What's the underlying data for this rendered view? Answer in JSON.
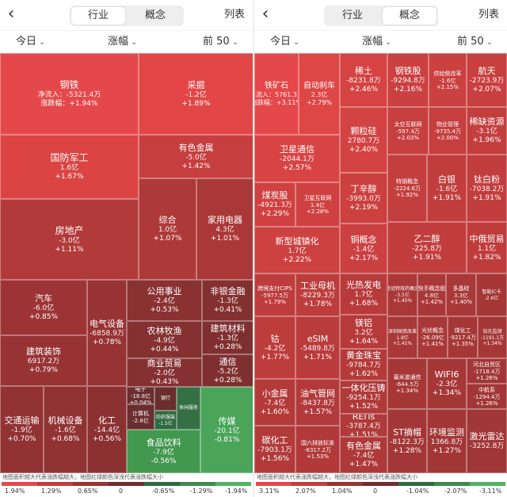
{
  "colors": {
    "red_dark": "#7e2e2f",
    "red_mid": "#9a3333",
    "red_strong": "#c13d3c",
    "red_bright": "#e5484a",
    "green": "#4aa55b",
    "green_dark": "#2f6a40"
  },
  "left": {
    "nav": {
      "back_icon": "chevron-left-icon",
      "tabs": [
        "行业",
        "概念"
      ],
      "active_tab": 0,
      "list_label": "列表"
    },
    "filters": {
      "period": "今日",
      "metric": "涨幅",
      "top": "前 50"
    },
    "tiles": [
      {
        "name": "钢铁",
        "lines": [
          "净流入：-5321.4万",
          "涨跌幅：+1.94%"
        ],
        "color": "#e5484a"
      },
      {
        "name": "采掘",
        "lines": [
          "-1.2亿",
          "+1.89%"
        ],
        "color": "#e24647"
      },
      {
        "name": "国防军工",
        "lines": [
          "1.6亿",
          "+1.67%"
        ],
        "color": "#db4443"
      },
      {
        "name": "有色金属",
        "lines": [
          "-5.0亿",
          "+1.42%"
        ],
        "color": "#c63e3e"
      },
      {
        "name": "房地产",
        "lines": [
          "-3.0亿",
          "+1.11%"
        ],
        "color": "#b23a3a"
      },
      {
        "name": "综合",
        "lines": [
          "1.0亿",
          "+1.07%"
        ],
        "color": "#ae3939"
      },
      {
        "name": "家用电器",
        "lines": [
          "4.3亿",
          "+1.01%"
        ],
        "color": "#aa3838"
      },
      {
        "name": "汽车",
        "lines": [
          "-6.0亿",
          "+0.85%"
        ],
        "color": "#9c3435"
      },
      {
        "name": "建筑装饰",
        "lines": [
          "6917.2万",
          "+0.79%"
        ],
        "color": "#983334"
      },
      {
        "name": "电气设备",
        "lines": [
          "-6858.9万",
          "+0.78%"
        ],
        "color": "#973334"
      },
      {
        "name": "公用事业",
        "lines": [
          "-2.4亿",
          "+0.53%"
        ],
        "color": "#8a3132"
      },
      {
        "name": "非银金融",
        "lines": [
          "-1.3亿",
          "+0.41%"
        ],
        "color": "#843031"
      },
      {
        "name": "农林牧渔",
        "lines": [
          "-4.9亿",
          "+0.44%"
        ],
        "color": "#853031"
      },
      {
        "name": "建筑材料",
        "lines": [
          "-1.3亿",
          "+0.28%"
        ],
        "color": "#7f2f30"
      },
      {
        "name": "商业贸易",
        "lines": [
          "-2.0亿",
          "+0.43%"
        ],
        "color": "#853031"
      },
      {
        "name": "通信",
        "lines": [
          "-5.2亿",
          "+0.28%"
        ],
        "color": "#7f2f30"
      },
      {
        "name": "交通运输",
        "lines": [
          "-1.9亿",
          "+0.70%"
        ],
        "color": "#923233"
      },
      {
        "name": "机械设备",
        "lines": [
          "-1.6亿",
          "+0.68%"
        ],
        "color": "#913233"
      },
      {
        "name": "化工",
        "lines": [
          "-14.4亿",
          "+0.56%"
        ],
        "color": "#8b3132"
      },
      {
        "name": "电子",
        "lines": [
          "-18.8亿",
          "+0.04%"
        ],
        "color": "#6a2e2f"
      },
      {
        "name": "计算机",
        "lines": [
          "-2.8亿"
        ],
        "color": "#6a2e2f"
      },
      {
        "name": "银行",
        "lines": [],
        "color": "#6a2e2f"
      },
      {
        "name": "纺织服装",
        "lines": [
          "-1.5亿"
        ],
        "color": "#2f6a40"
      },
      {
        "name": "休闲服务",
        "lines": [],
        "color": "#347044"
      },
      {
        "name": "传媒",
        "lines": [
          "-20.1亿",
          "-0.81%"
        ],
        "color": "#4aa55b"
      },
      {
        "name": "食品饮料",
        "lines": [
          "-7.9亿",
          "-0.56%"
        ],
        "color": "#43984f"
      }
    ],
    "legend": {
      "note": "地图面积越大代表涨跌幅越大，地图红绿颜色深浅代表涨跌幅大小",
      "labels": [
        "1.94%",
        "1.29%",
        "0.65%",
        "0",
        "-0.65%",
        "-1.29%",
        "-1.94%"
      ]
    }
  },
  "right": {
    "nav": {
      "back_icon": "chevron-left-icon",
      "tabs": [
        "行业",
        "概念"
      ],
      "active_tab": 1,
      "list_label": "列表"
    },
    "filters": {
      "period": "今日",
      "metric": "涨幅",
      "top": "前 50"
    },
    "tiles": [
      {
        "name": "铁矿石",
        "lines": [
          "净流入：5761.3万",
          "涨跌幅：+3.11%"
        ],
        "color": "#e5484a"
      },
      {
        "name": "自动刹车",
        "lines": [
          "2.3亿",
          "+2.79%"
        ],
        "color": "#df4646"
      },
      {
        "name": "卫星通信",
        "lines": [
          "-2044.1万",
          "+2.57%"
        ],
        "color": "#d84444"
      },
      {
        "name": "稀土",
        "lines": [
          "-8231.8万",
          "+2.46%"
        ],
        "color": "#d54343"
      },
      {
        "name": "钢铁股",
        "lines": [
          "-9294.8万",
          "+2.16%"
        ],
        "color": "#cb4040"
      },
      {
        "name": "供给侧改革",
        "lines": [
          "-1.6亿",
          "+2.15%"
        ],
        "color": "#cb4040"
      },
      {
        "name": "航天",
        "lines": [
          "-2723.9万",
          "+2.07%"
        ],
        "color": "#c83f3f"
      },
      {
        "name": "颗粒硅",
        "lines": [
          "2780.7万",
          "+2.40%"
        ],
        "color": "#d34343"
      },
      {
        "name": "太空互联网",
        "lines": [
          "-597.4万",
          "+2.03%"
        ],
        "color": "#c73f3f"
      },
      {
        "name": "物业管理",
        "lines": [
          "-9735.4万",
          "+2.00%"
        ],
        "color": "#c63e3e"
      },
      {
        "name": "稀缺资源",
        "lines": [
          "-3.1亿",
          "+1.96%"
        ],
        "color": "#c43e3e"
      },
      {
        "name": "煤炭股",
        "lines": [
          "-4921.3万",
          "+2.29%"
        ],
        "color": "#cf4141"
      },
      {
        "name": "卫星互联网",
        "lines": [
          "1.4亿",
          "+2.28%"
        ],
        "color": "#cf4141"
      },
      {
        "name": "丁辛醇",
        "lines": [
          "-3993.0万",
          "+2.19%"
        ],
        "color": "#cc4040"
      },
      {
        "name": "特钢概念",
        "lines": [
          "-2224.6万",
          "+1.92%"
        ],
        "color": "#c33e3e"
      },
      {
        "name": "白银",
        "lines": [
          "-1.6亿",
          "+1.91%"
        ],
        "color": "#c23d3d"
      },
      {
        "name": "钛白粉",
        "lines": [
          "-7038.2万",
          "+1.91%"
        ],
        "color": "#c23d3d"
      },
      {
        "name": "新型城镇化",
        "lines": [
          "1.7亿",
          "+2.22%"
        ],
        "color": "#cd4141"
      },
      {
        "name": "铜概念",
        "lines": [
          "-1.4亿",
          "+2.17%"
        ],
        "color": "#cb4040"
      },
      {
        "name": "乙二醇",
        "lines": [
          "-225.8万",
          "+1.91%"
        ],
        "color": "#c23d3d"
      },
      {
        "name": "中俄贸易",
        "lines": [
          "1.1亿",
          "+1.82%"
        ],
        "color": "#bf3c3c"
      },
      {
        "name": "跨境支付CIPS",
        "lines": [
          "-5977.5万",
          "+1.79%"
        ],
        "color": "#be3c3c"
      },
      {
        "name": "工业母机",
        "lines": [
          "-8229.3万",
          "+1.78%"
        ],
        "color": "#bd3c3c"
      },
      {
        "name": "光热发电",
        "lines": [
          "1.7亿",
          "+1.68%"
        ],
        "color": "#b83b3b"
      },
      {
        "name": "新冠特效药概念",
        "lines": [
          "-3.5亿",
          "+1.45%"
        ],
        "color": "#ab3838"
      },
      {
        "name": "快手概念股",
        "lines": [
          "4.8亿",
          "+1.42%"
        ],
        "color": "#aa3838"
      },
      {
        "name": "多晶硅",
        "lines": [
          "3.3亿",
          "+1.40%"
        ],
        "color": "#a93838"
      },
      {
        "name": "智能IC卡",
        "lines": [
          "-2.6亿"
        ],
        "color": "#a53737"
      },
      {
        "name": "钴",
        "lines": [
          "-4.2亿",
          "+1.77%"
        ],
        "color": "#bd3c3c"
      },
      {
        "name": "eSIM",
        "lines": [
          "-5489.8万",
          "+1.71%"
        ],
        "color": "#ba3b3b"
      },
      {
        "name": "镁铝",
        "lines": [
          "3.2亿",
          "+1.64%"
        ],
        "color": "#b63a3a"
      },
      {
        "name": "深圳国资改革",
        "lines": [
          "1.8亿",
          "+1.41%"
        ],
        "color": "#a93838"
      },
      {
        "name": "光伏概念",
        "lines": [
          "-26.09亿",
          "+1.41%"
        ],
        "color": "#a93838"
      },
      {
        "name": "煤化工",
        "lines": [
          "-9217.4万",
          "+1.35%"
        ],
        "color": "#a63737"
      },
      {
        "name": "钻孔监测",
        "lines": [
          "-1191.1万",
          "+1.34%"
        ],
        "color": "#a63737"
      },
      {
        "name": "黄金珠宝",
        "lines": [
          "-9784.7万",
          "+1.62%"
        ],
        "color": "#b53a3a"
      },
      {
        "name": "小金属",
        "lines": [
          "-7.4亿",
          "+1.60%"
        ],
        "color": "#b43a3a"
      },
      {
        "name": "油气管网",
        "lines": [
          "-8437.8万",
          "+1.57%"
        ],
        "color": "#b23a3a"
      },
      {
        "name": "一体化压铸",
        "lines": [
          "-9254.1万",
          "+1.52%"
        ],
        "color": "#b03939"
      },
      {
        "name": "毫米波通信",
        "lines": [
          "-644.5万",
          "+1.34%"
        ],
        "color": "#a63737"
      },
      {
        "name": "WIFI6",
        "lines": [
          "-2.3亿",
          "+1.34%"
        ],
        "color": "#a63737"
      },
      {
        "name": "河北自贸区",
        "lines": [
          "-1718.4万",
          "+1.26%"
        ],
        "color": "#a23636"
      },
      {
        "name": "中航系",
        "lines": [
          "-1294.4万",
          "+1.26%"
        ],
        "color": "#a23636"
      },
      {
        "name": "REITs",
        "lines": [
          "-3787.4万",
          "+1.51%"
        ],
        "color": "#b03939"
      },
      {
        "name": "碳化工",
        "lines": [
          "-7903.1万",
          "+1.56%"
        ],
        "color": "#b23a3a"
      },
      {
        "name": "国六排放标准",
        "lines": [
          "-6317.2万",
          "+1.53%"
        ],
        "color": "#b13939"
      },
      {
        "name": "有色金属",
        "lines": [
          "-7.4亿",
          "+1.47%"
        ],
        "color": "#ae3939"
      },
      {
        "name": "ST摘帽",
        "lines": [
          "-8122.3万",
          "+1.28%"
        ],
        "color": "#a33636"
      },
      {
        "name": "环境监测",
        "lines": [
          "1366.8万",
          "+1.27%"
        ],
        "color": "#a23636"
      },
      {
        "name": "激光雷达",
        "lines": [
          "-3252.8万"
        ],
        "color": "#a03636"
      }
    ],
    "legend": {
      "note": "地图面积越大代表涨跌幅越大，地图红绿颜色深浅代表涨跌幅大小",
      "labels": [
        "3.11%",
        "2.07%",
        "1.04%",
        "0",
        "-1.04%",
        "-2.07%",
        "-3.11%"
      ]
    }
  }
}
